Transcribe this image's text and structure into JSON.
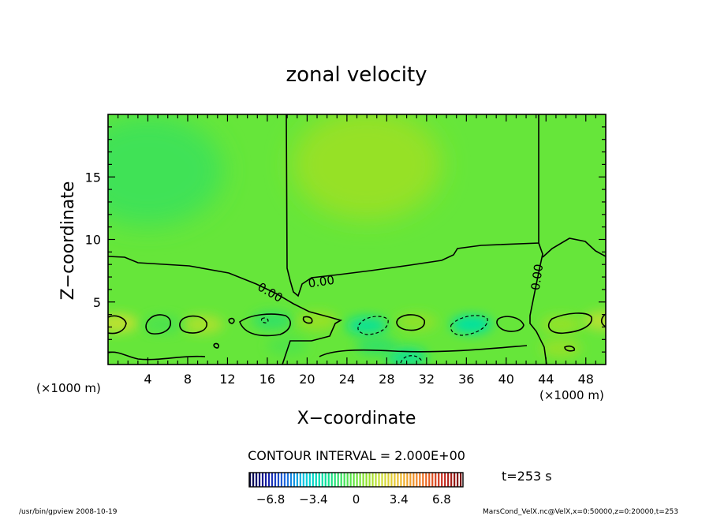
{
  "chart_data": {
    "type": "heatmap",
    "title": "zonal velocity",
    "xlabel": "X−coordinate",
    "ylabel": "Z−coordinate",
    "x_unit_left": "(×1000 m)",
    "x_unit_right": "(×1000 m)",
    "xlim": [
      0,
      50
    ],
    "ylim": [
      0,
      20
    ],
    "x_ticks": [
      4,
      8,
      12,
      16,
      20,
      24,
      28,
      32,
      36,
      40,
      44,
      48
    ],
    "y_ticks": [
      5,
      10,
      15
    ],
    "contour_labels": [
      "0.00",
      "0.00",
      "0.00"
    ],
    "contour_interval_text": "CONTOUR INTERVAL = 2.000E+00",
    "time_text": "t=253 s",
    "colorbar": {
      "min": -8.5,
      "max": 8.5,
      "tick_values": [
        -6.8,
        -3.4,
        0,
        3.4,
        6.8
      ],
      "tick_labels": [
        "−6.8",
        "−3.4",
        "0",
        "3.4",
        "6.8"
      ]
    },
    "footer_left": "/usr/bin/gpview   2008-10-19",
    "footer_right": "MarsCond_VelX.nc@VelX,x=0:50000,z=0:20000,t=253",
    "features": [
      {
        "x": 4,
        "z": 15.5,
        "value": -0.9
      },
      {
        "x": 26,
        "z": 16,
        "value": 1.0
      },
      {
        "x": 1,
        "z": 3.3,
        "value": 1.7
      },
      {
        "x": 9.5,
        "z": 3.2,
        "value": 1.3
      },
      {
        "x": 5.5,
        "z": 3.2,
        "value": -0.6
      },
      {
        "x": 16.5,
        "z": 3.5,
        "value": -1.2
      },
      {
        "x": 21,
        "z": 3.5,
        "value": 1.0
      },
      {
        "x": 26,
        "z": 3.1,
        "value": -2.2
      },
      {
        "x": 31,
        "z": 3.4,
        "value": 0.8
      },
      {
        "x": 36.5,
        "z": 3.2,
        "value": -2.5
      },
      {
        "x": 45.5,
        "z": 3.2,
        "value": 0.9
      },
      {
        "x": 30,
        "z": 0.6,
        "value": -2.0
      },
      {
        "x": 27,
        "z": 1.5,
        "value": -1.2
      },
      {
        "x": 18,
        "z": 1.5,
        "value": -0.5
      },
      {
        "x": 49.8,
        "z": 3.5,
        "value": 1.5
      },
      {
        "x": 45.5,
        "z": 1.3,
        "value": 0.9
      }
    ]
  }
}
